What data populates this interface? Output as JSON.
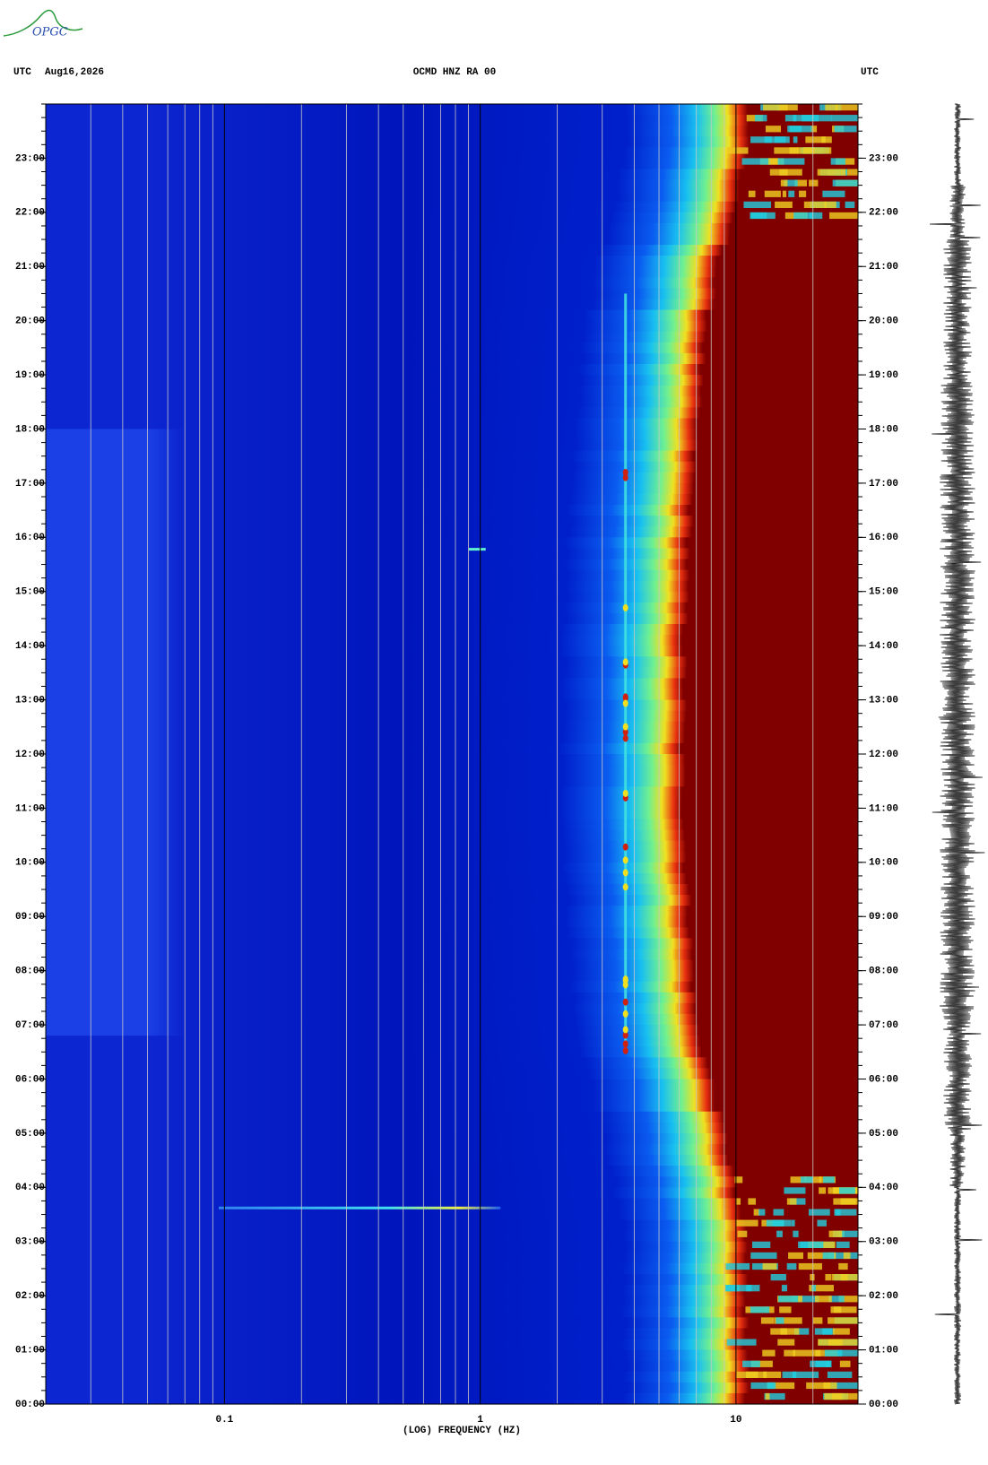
{
  "logo": "OPGC",
  "chart_data": {
    "type": "spectrogram",
    "time_zone_left": "UTC",
    "date": "Aug16,2026",
    "title": "OCMD HNZ RA 00",
    "time_zone_right": "UTC",
    "x_label": "(LOG) FREQUENCY (HZ)",
    "xscale": "log",
    "xlim": [
      0.02,
      30
    ],
    "xticks": [
      0.1,
      1,
      10
    ],
    "xgrid_minor": [
      0.03,
      0.04,
      0.05,
      0.06,
      0.07,
      0.08,
      0.09,
      0.2,
      0.3,
      0.4,
      0.5,
      0.6,
      0.7,
      0.8,
      0.9,
      2,
      3,
      4,
      5,
      6,
      7,
      8,
      9,
      20
    ],
    "ylim": [
      0,
      24
    ],
    "yticks": [
      {
        "value": 0,
        "label": "00:00"
      },
      {
        "value": 1,
        "label": "01:00"
      },
      {
        "value": 2,
        "label": "02:00"
      },
      {
        "value": 3,
        "label": "03:00"
      },
      {
        "value": 4,
        "label": "04:00"
      },
      {
        "value": 5,
        "label": "05:00"
      },
      {
        "value": 6,
        "label": "06:00"
      },
      {
        "value": 7,
        "label": "07:00"
      },
      {
        "value": 8,
        "label": "08:00"
      },
      {
        "value": 9,
        "label": "09:00"
      },
      {
        "value": 10,
        "label": "10:00"
      },
      {
        "value": 11,
        "label": "11:00"
      },
      {
        "value": 12,
        "label": "12:00"
      },
      {
        "value": 13,
        "label": "13:00"
      },
      {
        "value": 14,
        "label": "14:00"
      },
      {
        "value": 15,
        "label": "15:00"
      },
      {
        "value": 16,
        "label": "16:00"
      },
      {
        "value": 17,
        "label": "17:00"
      },
      {
        "value": 18,
        "label": "18:00"
      },
      {
        "value": 19,
        "label": "19:00"
      },
      {
        "value": 20,
        "label": "20:00"
      },
      {
        "value": 21,
        "label": "21:00"
      },
      {
        "value": 22,
        "label": "22:00"
      },
      {
        "value": 23,
        "label": "23:00"
      }
    ]
  }
}
